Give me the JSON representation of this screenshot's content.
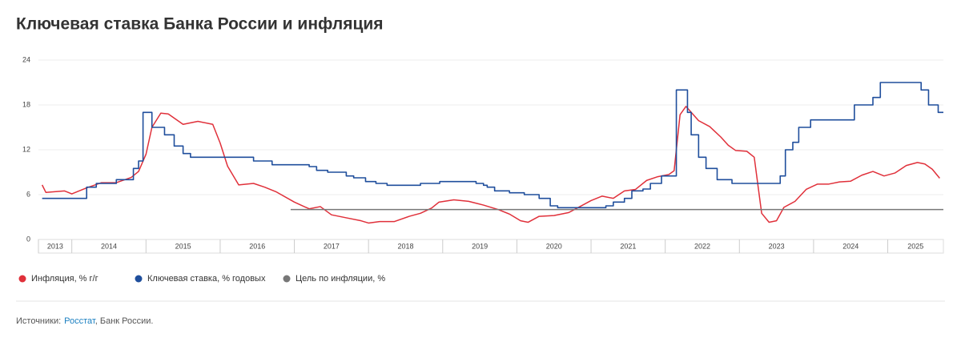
{
  "chart_data": {
    "type": "line",
    "title": "Ключевая ставка Банка России и инфляция",
    "ylim": [
      0,
      24
    ],
    "yticks": [
      0,
      6,
      12,
      18,
      24
    ],
    "xlim": [
      2013.55,
      2025.75
    ],
    "xticks": [
      2014,
      2015,
      2016,
      2017,
      2018,
      2019,
      2020,
      2021,
      2022,
      2023,
      2024,
      2025
    ],
    "years": [
      2013,
      2014,
      2015,
      2016,
      2017,
      2018,
      2019,
      2020,
      2021,
      2022,
      2023,
      2024,
      2025
    ],
    "grid": true,
    "legend": "bottom-left",
    "series": [
      {
        "name": "Инфляция, % г/г",
        "color": "#e0303a",
        "step": false,
        "x": [
          2013.6,
          2013.65,
          2013.9,
          2014.0,
          2014.2,
          2014.4,
          2014.6,
          2014.8,
          2014.9,
          2015.0,
          2015.08,
          2015.2,
          2015.3,
          2015.5,
          2015.7,
          2015.9,
          2016.0,
          2016.1,
          2016.25,
          2016.45,
          2016.6,
          2016.75,
          2017.0,
          2017.2,
          2017.35,
          2017.5,
          2017.7,
          2017.9,
          2018.0,
          2018.15,
          2018.35,
          2018.55,
          2018.7,
          2018.85,
          2018.95,
          2019.15,
          2019.35,
          2019.55,
          2019.75,
          2019.9,
          2020.05,
          2020.15,
          2020.3,
          2020.5,
          2020.7,
          2020.85,
          2021.0,
          2021.15,
          2021.3,
          2021.45,
          2021.6,
          2021.75,
          2021.9,
          2022.05,
          2022.12,
          2022.2,
          2022.28,
          2022.45,
          2022.6,
          2022.75,
          2022.85,
          2022.95,
          2023.1,
          2023.2,
          2023.3,
          2023.4,
          2023.5,
          2023.6,
          2023.75,
          2023.9,
          2024.05,
          2024.2,
          2024.35,
          2024.5,
          2024.65,
          2024.8,
          2024.95,
          2025.1,
          2025.25,
          2025.4,
          2025.5,
          2025.6,
          2025.7
        ],
        "values": [
          7.3,
          6.3,
          6.5,
          6.1,
          6.9,
          7.6,
          7.6,
          8.3,
          9.1,
          11.4,
          15,
          16.9,
          16.8,
          15.4,
          15.8,
          15.4,
          12.9,
          9.8,
          7.3,
          7.5,
          7.0,
          6.4,
          5.0,
          4.1,
          4.4,
          3.3,
          2.9,
          2.5,
          2.2,
          2.4,
          2.4,
          3.1,
          3.5,
          4.2,
          5.0,
          5.3,
          5.1,
          4.6,
          4.0,
          3.4,
          2.5,
          2.3,
          3.1,
          3.2,
          3.6,
          4.4,
          5.2,
          5.8,
          5.5,
          6.5,
          6.7,
          7.9,
          8.4,
          8.7,
          9.2,
          16.7,
          17.8,
          15.9,
          15.1,
          13.7,
          12.6,
          11.9,
          11.8,
          11.0,
          3.5,
          2.3,
          2.5,
          4.3,
          5.1,
          6.7,
          7.4,
          7.4,
          7.7,
          7.8,
          8.6,
          9.1,
          8.5,
          8.9,
          9.9,
          10.3,
          10.1,
          9.4,
          8.2
        ]
      },
      {
        "name": "Ключевая ставка, % годовых",
        "color": "#1f4e9c",
        "step": true,
        "x": [
          2013.6,
          2014.2,
          2014.33,
          2014.6,
          2014.83,
          2014.9,
          2014.96,
          2015.08,
          2015.25,
          2015.38,
          2015.5,
          2015.6,
          2016.45,
          2016.7,
          2017.2,
          2017.3,
          2017.45,
          2017.7,
          2017.8,
          2017.96,
          2018.1,
          2018.25,
          2018.7,
          2018.96,
          2019.45,
          2019.55,
          2019.6,
          2019.7,
          2019.9,
          2020.1,
          2020.3,
          2020.45,
          2020.55,
          2021.2,
          2021.3,
          2021.45,
          2021.55,
          2021.7,
          2021.8,
          2021.95,
          2022.15,
          2022.3,
          2022.35,
          2022.45,
          2022.55,
          2022.7,
          2022.9,
          2023.55,
          2023.62,
          2023.72,
          2023.8,
          2023.96,
          2024.55,
          2024.8,
          2024.9,
          2025.45,
          2025.55,
          2025.68,
          2025.75
        ],
        "values": [
          5.5,
          7,
          7.5,
          8,
          9.5,
          10.5,
          17,
          15,
          14,
          12.5,
          11.5,
          11,
          10.5,
          10,
          9.75,
          9.25,
          9,
          8.5,
          8.25,
          7.75,
          7.5,
          7.25,
          7.5,
          7.75,
          7.5,
          7.25,
          7,
          6.5,
          6.25,
          6,
          5.5,
          4.5,
          4.25,
          4.5,
          5,
          5.5,
          6.5,
          6.75,
          7.5,
          8.5,
          20,
          17,
          14,
          11,
          9.5,
          8,
          7.5,
          8.5,
          12,
          13,
          15,
          16,
          18,
          19,
          21,
          20,
          18,
          17,
          17
        ]
      },
      {
        "name": "Цель по инфляции, %",
        "color": "#777777",
        "step": false,
        "x": [
          2016.95,
          2025.75
        ],
        "values": [
          4,
          4
        ]
      }
    ]
  },
  "source": {
    "prefix": "Источники:",
    "link": "Росстат",
    "suffix": ", Банк России."
  }
}
